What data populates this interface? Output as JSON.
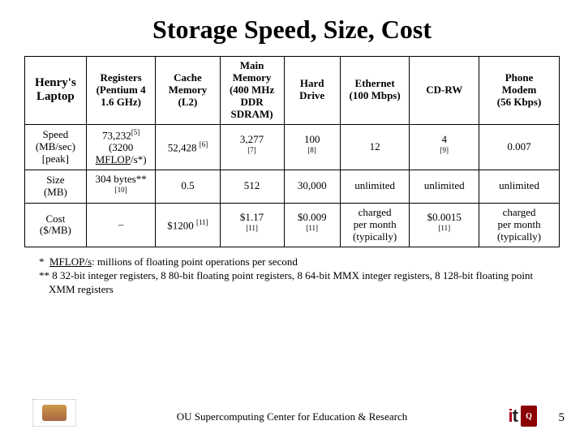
{
  "title": "Storage Speed, Size, Cost",
  "table": {
    "corner_label": "Henry's\nLaptop",
    "columns": [
      "Registers\n(Pentium 4\n1.6 GHz)",
      "Cache\nMemory\n(L2)",
      "Main\nMemory\n(400 MHz\nDDR\nSDRAM)",
      "Hard\nDrive",
      "Ethernet\n(100 Mbps)",
      "CD-RW",
      "Phone\nModem\n(56 Kbps)"
    ],
    "row_headers": [
      "Speed\n(MB/sec)\n[peak]",
      "Size\n(MB)",
      "Cost\n($/MB)"
    ],
    "cells": {
      "speed": {
        "registers": {
          "main": "73,232",
          "sup": "[5]",
          "sub": "(3200\nMFLOP/s*)",
          "underline_sub": true
        },
        "cache": {
          "main": "52,428",
          "sup": "[6]"
        },
        "main_mem": {
          "main": "3,277",
          "sup_below": "[7]"
        },
        "hdd": {
          "main": "100",
          "sup_below": "[8]"
        },
        "ethernet": {
          "main": "12"
        },
        "cdrw": {
          "main": "4",
          "sup_below": "[9]"
        },
        "modem": {
          "main": "0.007"
        }
      },
      "size": {
        "registers": {
          "main": "304 bytes**",
          "sup_below": "[10]"
        },
        "cache": {
          "main": "0.5"
        },
        "main_mem": {
          "main": "512"
        },
        "hdd": {
          "main": "30,000"
        },
        "ethernet": {
          "main": "unlimited"
        },
        "cdrw": {
          "main": "unlimited"
        },
        "modem": {
          "main": "unlimited"
        }
      },
      "cost": {
        "registers": {
          "main": "–"
        },
        "cache": {
          "main": "$1200",
          "sup": "[11]"
        },
        "main_mem": {
          "main": "$1.17",
          "sup_below": "[11]"
        },
        "hdd": {
          "main": "$0.009",
          "sup_below": "[11]"
        },
        "ethernet": {
          "main": "charged\nper month\n(typically)"
        },
        "cdrw": {
          "main": "$0.0015",
          "sup_below": "[11]"
        },
        "modem": {
          "main": "charged\nper month\n(typically)"
        }
      }
    }
  },
  "footnotes": {
    "star": "*  MFLOP/s: millions of floating point operations per second",
    "star_underline": "MFLOP/s",
    "dstar": "** 8 32-bit integer registers, 8 80-bit floating point registers, 8 64-bit MMX integer registers, 8 128-bit floating point XMM registers"
  },
  "footer": {
    "text": "OU Supercomputing Center for Education & Research",
    "page": "5"
  },
  "colors": {
    "text": "#000000",
    "bg": "#ffffff",
    "it_red": "#b00020",
    "ou_crimson": "#8b0000"
  }
}
